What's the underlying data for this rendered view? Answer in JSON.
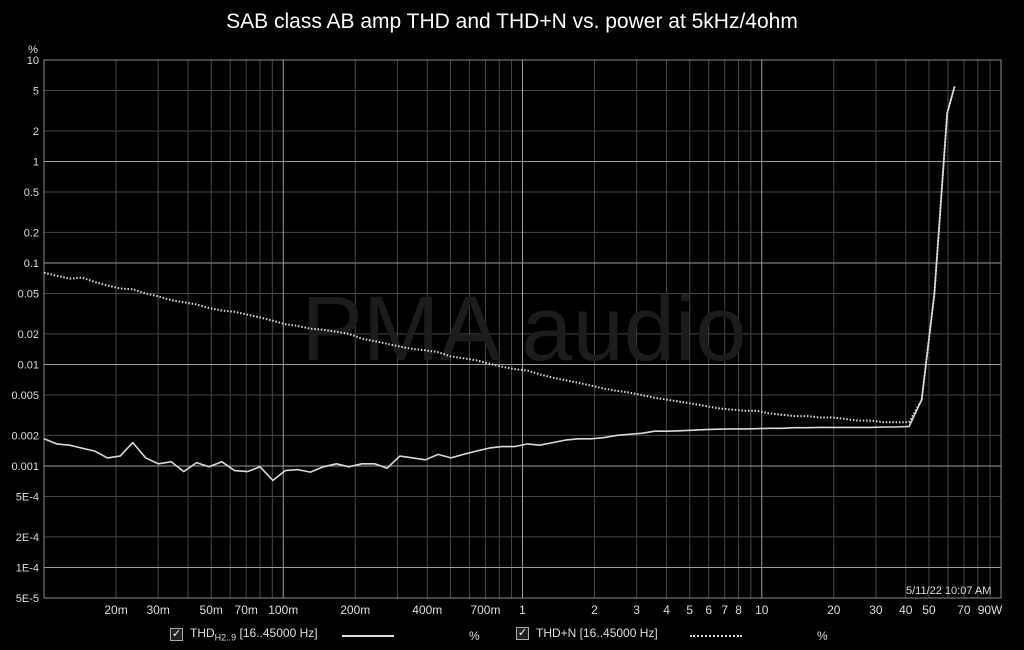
{
  "title": "SAB class AB amp THD and THD+N vs. power at 5kHz/4ohm",
  "watermark": "PMA audio",
  "timestamp": "5/11/22 10:07 AM",
  "colors": {
    "background": "#000000",
    "grid": "#454545",
    "grid_major": "#9a9a9a",
    "series": "#d9d9d9"
  },
  "legend": [
    {
      "check": "✓",
      "label_main": "THD",
      "label_sub": "H2..9",
      "label_rest": " [16..45000 Hz]",
      "unit": "%"
    },
    {
      "check": "✓",
      "label_main": "THD+N",
      "label_sub": "",
      "label_rest": " [16..45000 Hz]",
      "unit": "%"
    }
  ],
  "chart_data": {
    "type": "line",
    "title": "SAB class AB amp THD and THD+N vs. power at 5kHz/4ohm",
    "xscale": "log",
    "yscale": "log",
    "xlim": [
      0.01,
      100
    ],
    "ylim": [
      5e-05,
      10
    ],
    "grid": true,
    "legend_position": "bottom",
    "ylabel": "%",
    "yticks": [
      {
        "v": 10,
        "label": "10"
      },
      {
        "v": 5,
        "label": "5"
      },
      {
        "v": 2,
        "label": "2"
      },
      {
        "v": 1,
        "label": "1"
      },
      {
        "v": 0.5,
        "label": "0.5"
      },
      {
        "v": 0.2,
        "label": "0.2"
      },
      {
        "v": 0.1,
        "label": "0.1"
      },
      {
        "v": 0.05,
        "label": "0.05"
      },
      {
        "v": 0.02,
        "label": "0.02"
      },
      {
        "v": 0.01,
        "label": "0.01"
      },
      {
        "v": 0.005,
        "label": "0.005"
      },
      {
        "v": 0.002,
        "label": "0.002"
      },
      {
        "v": 0.001,
        "label": "0.001"
      },
      {
        "v": 0.0005,
        "label": "5E-4"
      },
      {
        "v": 0.0002,
        "label": "2E-4"
      },
      {
        "v": 0.0001,
        "label": "1E-4"
      },
      {
        "v": 5e-05,
        "label": "5E-5"
      }
    ],
    "xticks": [
      {
        "v": 0.02,
        "label": "20m"
      },
      {
        "v": 0.03,
        "label": "30m"
      },
      {
        "v": 0.05,
        "label": "50m"
      },
      {
        "v": 0.07,
        "label": "70m"
      },
      {
        "v": 0.1,
        "label": "100m"
      },
      {
        "v": 0.2,
        "label": "200m"
      },
      {
        "v": 0.4,
        "label": "400m"
      },
      {
        "v": 0.7,
        "label": "700m"
      },
      {
        "v": 1,
        "label": "1"
      },
      {
        "v": 2,
        "label": "2"
      },
      {
        "v": 3,
        "label": "3"
      },
      {
        "v": 4,
        "label": "4"
      },
      {
        "v": 5,
        "label": "5"
      },
      {
        "v": 6,
        "label": "6"
      },
      {
        "v": 7,
        "label": "7"
      },
      {
        "v": 8,
        "label": "8"
      },
      {
        "v": 10,
        "label": "10"
      },
      {
        "v": 20,
        "label": "20"
      },
      {
        "v": 30,
        "label": "30"
      },
      {
        "v": 40,
        "label": "40"
      },
      {
        "v": 50,
        "label": "50"
      },
      {
        "v": 70,
        "label": "70"
      },
      {
        "v": 90,
        "label": "90W"
      }
    ],
    "series": [
      {
        "name": "THD H2..9 [16..45000 Hz]",
        "style": "solid",
        "points": [
          [
            0.01,
            0.00185
          ],
          [
            0.0113,
            0.00165
          ],
          [
            0.0128,
            0.0016
          ],
          [
            0.0144,
            0.0015
          ],
          [
            0.0163,
            0.0014
          ],
          [
            0.0184,
            0.0012
          ],
          [
            0.0208,
            0.00125
          ],
          [
            0.0235,
            0.0017
          ],
          [
            0.0266,
            0.0012
          ],
          [
            0.03,
            0.00105
          ],
          [
            0.034,
            0.0011
          ],
          [
            0.0384,
            0.00088
          ],
          [
            0.0434,
            0.00108
          ],
          [
            0.049,
            0.00098
          ],
          [
            0.0554,
            0.0011
          ],
          [
            0.0626,
            0.0009
          ],
          [
            0.0708,
            0.00088
          ],
          [
            0.08,
            0.00098
          ],
          [
            0.0905,
            0.00072
          ],
          [
            0.102,
            0.0009
          ],
          [
            0.115,
            0.00092
          ],
          [
            0.13,
            0.00087
          ],
          [
            0.147,
            0.00098
          ],
          [
            0.167,
            0.00105
          ],
          [
            0.188,
            0.00098
          ],
          [
            0.213,
            0.00105
          ],
          [
            0.241,
            0.00105
          ],
          [
            0.272,
            0.00095
          ],
          [
            0.307,
            0.00125
          ],
          [
            0.348,
            0.0012
          ],
          [
            0.393,
            0.00115
          ],
          [
            0.444,
            0.0013
          ],
          [
            0.502,
            0.0012
          ],
          [
            0.567,
            0.0013
          ],
          [
            0.641,
            0.0014
          ],
          [
            0.725,
            0.0015
          ],
          [
            0.819,
            0.00155
          ],
          [
            0.926,
            0.00155
          ],
          [
            1.05,
            0.00165
          ],
          [
            1.18,
            0.0016
          ],
          [
            1.34,
            0.0017
          ],
          [
            1.51,
            0.0018
          ],
          [
            1.71,
            0.00185
          ],
          [
            1.93,
            0.00185
          ],
          [
            2.18,
            0.0019
          ],
          [
            2.47,
            0.002
          ],
          [
            2.79,
            0.00205
          ],
          [
            3.15,
            0.0021
          ],
          [
            3.56,
            0.0022
          ],
          [
            4.03,
            0.0022
          ],
          [
            4.55,
            0.00222
          ],
          [
            5.15,
            0.00225
          ],
          [
            5.82,
            0.00228
          ],
          [
            6.58,
            0.0023
          ],
          [
            7.43,
            0.00232
          ],
          [
            8.4,
            0.00232
          ],
          [
            9.5,
            0.00233
          ],
          [
            10.7,
            0.00235
          ],
          [
            12.1,
            0.00235
          ],
          [
            13.7,
            0.00238
          ],
          [
            15.5,
            0.00238
          ],
          [
            17.5,
            0.0024
          ],
          [
            19.8,
            0.0024
          ],
          [
            22.4,
            0.0024
          ],
          [
            25.3,
            0.0024
          ],
          [
            28.6,
            0.0024
          ],
          [
            32.3,
            0.00242
          ],
          [
            36.5,
            0.00242
          ],
          [
            41.3,
            0.00245
          ],
          [
            46.6,
            0.0045
          ],
          [
            52.7,
            0.05
          ],
          [
            59.6,
            3.0
          ],
          [
            64.0,
            5.5
          ]
        ]
      },
      {
        "name": "THD+N [16..45000 Hz]",
        "style": "dotted",
        "points": [
          [
            0.01,
            0.08
          ],
          [
            0.0113,
            0.075
          ],
          [
            0.0128,
            0.07
          ],
          [
            0.0144,
            0.072
          ],
          [
            0.0163,
            0.065
          ],
          [
            0.0184,
            0.06
          ],
          [
            0.0208,
            0.056
          ],
          [
            0.0235,
            0.055
          ],
          [
            0.0266,
            0.05
          ],
          [
            0.03,
            0.047
          ],
          [
            0.034,
            0.043
          ],
          [
            0.0384,
            0.041
          ],
          [
            0.0434,
            0.039
          ],
          [
            0.049,
            0.036
          ],
          [
            0.0554,
            0.034
          ],
          [
            0.0626,
            0.033
          ],
          [
            0.0708,
            0.031
          ],
          [
            0.08,
            0.029
          ],
          [
            0.0905,
            0.027
          ],
          [
            0.102,
            0.025
          ],
          [
            0.115,
            0.024
          ],
          [
            0.13,
            0.0225
          ],
          [
            0.147,
            0.022
          ],
          [
            0.167,
            0.021
          ],
          [
            0.188,
            0.02
          ],
          [
            0.213,
            0.018
          ],
          [
            0.241,
            0.017
          ],
          [
            0.272,
            0.016
          ],
          [
            0.307,
            0.015
          ],
          [
            0.348,
            0.0142
          ],
          [
            0.393,
            0.0138
          ],
          [
            0.444,
            0.0132
          ],
          [
            0.502,
            0.012
          ],
          [
            0.567,
            0.0115
          ],
          [
            0.641,
            0.011
          ],
          [
            0.725,
            0.0102
          ],
          [
            0.819,
            0.0095
          ],
          [
            0.926,
            0.009
          ],
          [
            1.05,
            0.0087
          ],
          [
            1.18,
            0.008
          ],
          [
            1.34,
            0.0074
          ],
          [
            1.51,
            0.007
          ],
          [
            1.71,
            0.0066
          ],
          [
            1.93,
            0.0062
          ],
          [
            2.18,
            0.0058
          ],
          [
            2.47,
            0.0055
          ],
          [
            2.79,
            0.0053
          ],
          [
            3.15,
            0.005
          ],
          [
            3.56,
            0.0047
          ],
          [
            4.03,
            0.0045
          ],
          [
            4.55,
            0.0043
          ],
          [
            5.15,
            0.0041
          ],
          [
            5.82,
            0.0039
          ],
          [
            6.58,
            0.0037
          ],
          [
            7.43,
            0.0036
          ],
          [
            8.4,
            0.0035
          ],
          [
            9.5,
            0.0035
          ],
          [
            10.7,
            0.0033
          ],
          [
            12.1,
            0.0032
          ],
          [
            13.7,
            0.0031
          ],
          [
            15.5,
            0.0031
          ],
          [
            17.5,
            0.003
          ],
          [
            19.8,
            0.003
          ],
          [
            22.4,
            0.0029
          ],
          [
            25.3,
            0.0028
          ],
          [
            28.6,
            0.0028
          ],
          [
            32.3,
            0.0027
          ],
          [
            36.5,
            0.0027
          ],
          [
            41.3,
            0.0027
          ],
          [
            46.6,
            0.0045
          ],
          [
            52.7,
            0.05
          ],
          [
            59.6,
            3.0
          ],
          [
            64.0,
            5.5
          ]
        ]
      }
    ]
  }
}
